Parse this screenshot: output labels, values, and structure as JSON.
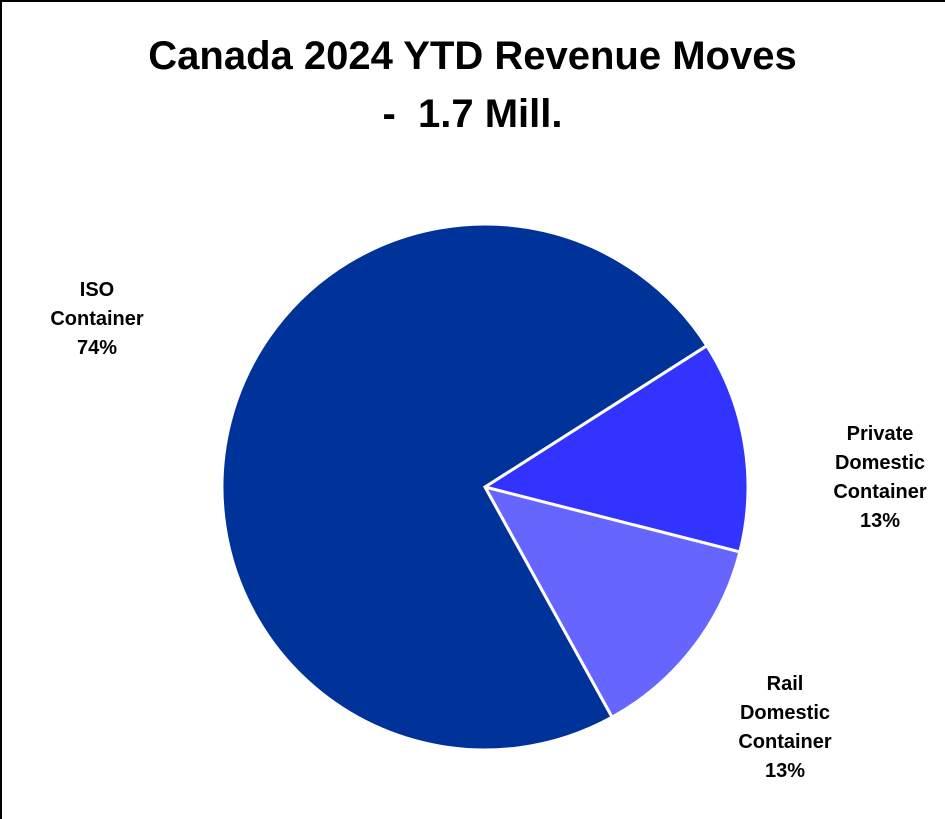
{
  "chart_data": {
    "type": "pie",
    "title": [
      "Canada 2024 YTD Revenue Moves",
      "-  1.7 Mill."
    ],
    "categories": [
      "ISO Container",
      "Private Domestic Container",
      "Rail Domestic Container"
    ],
    "values": [
      74,
      13,
      13
    ],
    "value_labels": [
      "74%",
      "13%",
      "13%"
    ],
    "colors": [
      "#003399",
      "#3333ff",
      "#6666ff"
    ]
  }
}
